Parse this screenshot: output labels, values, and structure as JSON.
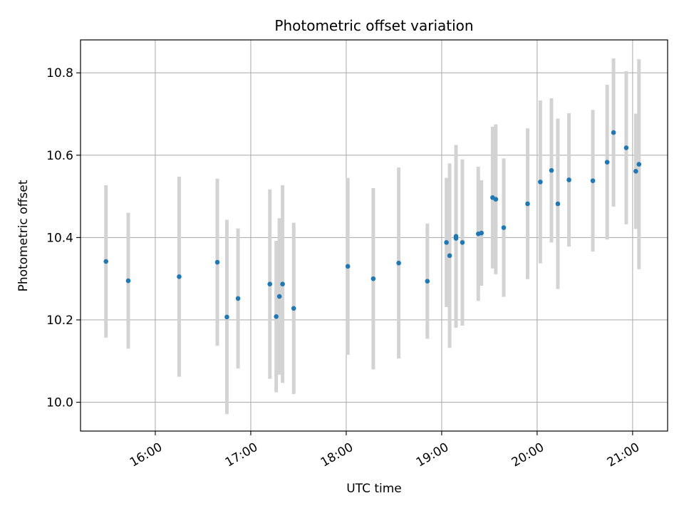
{
  "chart_data": {
    "type": "scatter",
    "title": "Photometric offset variation",
    "xlabel": "UTC time",
    "ylabel": "Photometric offset",
    "x_ticks": [
      "16:00",
      "17:00",
      "18:00",
      "19:00",
      "20:00",
      "21:00"
    ],
    "y_ticks": [
      "10.0",
      "10.2",
      "10.4",
      "10.6",
      "10.8"
    ],
    "xlim": [
      "15:13",
      "21:22"
    ],
    "ylim": [
      9.93,
      10.88
    ],
    "grid": true,
    "marker_color": "#1f77b4",
    "errorbar_color": "#d3d3d3",
    "series": [
      {
        "points": [
          {
            "x": "15:29",
            "y": 10.342,
            "err": 0.185
          },
          {
            "x": "15:43",
            "y": 10.295,
            "err": 0.165
          },
          {
            "x": "16:15",
            "y": 10.305,
            "err": 0.243
          },
          {
            "x": "16:39",
            "y": 10.34,
            "err": 0.203
          },
          {
            "x": "16:45",
            "y": 10.207,
            "err": 0.236
          },
          {
            "x": "16:52",
            "y": 10.252,
            "err": 0.17
          },
          {
            "x": "17:12",
            "y": 10.287,
            "err": 0.23
          },
          {
            "x": "17:16",
            "y": 10.208,
            "err": 0.184
          },
          {
            "x": "17:18",
            "y": 10.257,
            "err": 0.19
          },
          {
            "x": "17:20",
            "y": 10.287,
            "err": 0.24
          },
          {
            "x": "17:27",
            "y": 10.228,
            "err": 0.208
          },
          {
            "x": "18:01",
            "y": 10.33,
            "err": 0.215
          },
          {
            "x": "18:17",
            "y": 10.3,
            "err": 0.22
          },
          {
            "x": "18:33",
            "y": 10.338,
            "err": 0.232
          },
          {
            "x": "18:51",
            "y": 10.294,
            "err": 0.14
          },
          {
            "x": "19:03",
            "y": 10.388,
            "err": 0.157
          },
          {
            "x": "19:05",
            "y": 10.356,
            "err": 0.224
          },
          {
            "x": "19:09",
            "y": 10.403,
            "err": 0.222
          },
          {
            "x": "19:09",
            "y": 10.398,
            "err": 0.2
          },
          {
            "x": "19:13",
            "y": 10.388,
            "err": 0.202
          },
          {
            "x": "19:23",
            "y": 10.409,
            "err": 0.163
          },
          {
            "x": "19:25",
            "y": 10.411,
            "err": 0.128
          },
          {
            "x": "19:32",
            "y": 10.497,
            "err": 0.172
          },
          {
            "x": "19:34",
            "y": 10.493,
            "err": 0.182
          },
          {
            "x": "19:39",
            "y": 10.424,
            "err": 0.168
          },
          {
            "x": "19:54",
            "y": 10.482,
            "err": 0.183
          },
          {
            "x": "20:02",
            "y": 10.535,
            "err": 0.198
          },
          {
            "x": "20:09",
            "y": 10.563,
            "err": 0.175
          },
          {
            "x": "20:13",
            "y": 10.482,
            "err": 0.207
          },
          {
            "x": "20:20",
            "y": 10.54,
            "err": 0.162
          },
          {
            "x": "20:35",
            "y": 10.538,
            "err": 0.172
          },
          {
            "x": "20:44",
            "y": 10.583,
            "err": 0.188
          },
          {
            "x": "20:48",
            "y": 10.655,
            "err": 0.18
          },
          {
            "x": "20:56",
            "y": 10.618,
            "err": 0.186
          },
          {
            "x": "21:02",
            "y": 10.561,
            "err": 0.14
          },
          {
            "x": "21:04",
            "y": 10.578,
            "err": 0.255
          }
        ]
      }
    ]
  }
}
